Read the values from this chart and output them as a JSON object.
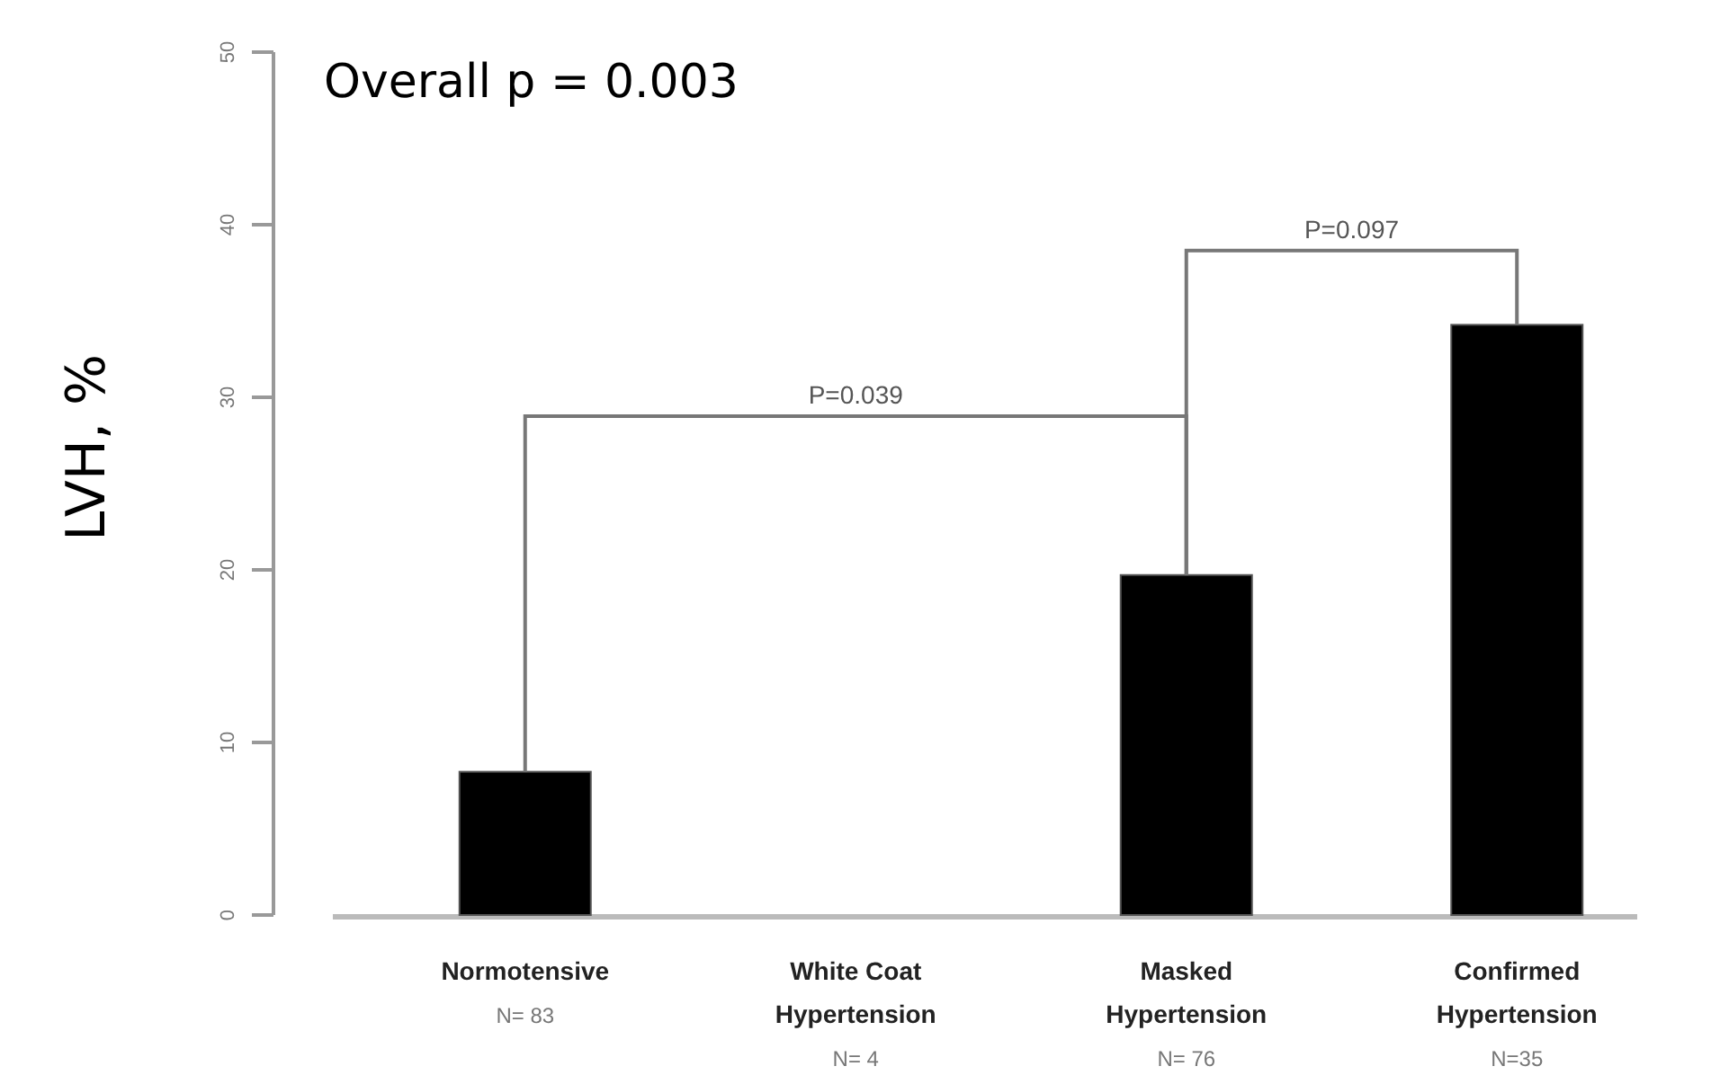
{
  "chart_data": {
    "type": "bar",
    "title": "Overall p = 0.003",
    "ylabel": "LVH, %",
    "categories": [
      "Normotensive\nN= 83",
      "White Coat\nHypertension\nN= 4",
      "Masked\nHypertension\nN= 76",
      "Confirmed\nHypertension\nN=35"
    ],
    "values": [
      8.3,
      0,
      19.7,
      34.2
    ],
    "color": "#000000",
    "ylim": [
      0,
      50
    ],
    "yticks": [
      0,
      10,
      20,
      30,
      40,
      50
    ],
    "grid": false,
    "annotations": [
      "P=0.039",
      "P=0.097"
    ]
  }
}
